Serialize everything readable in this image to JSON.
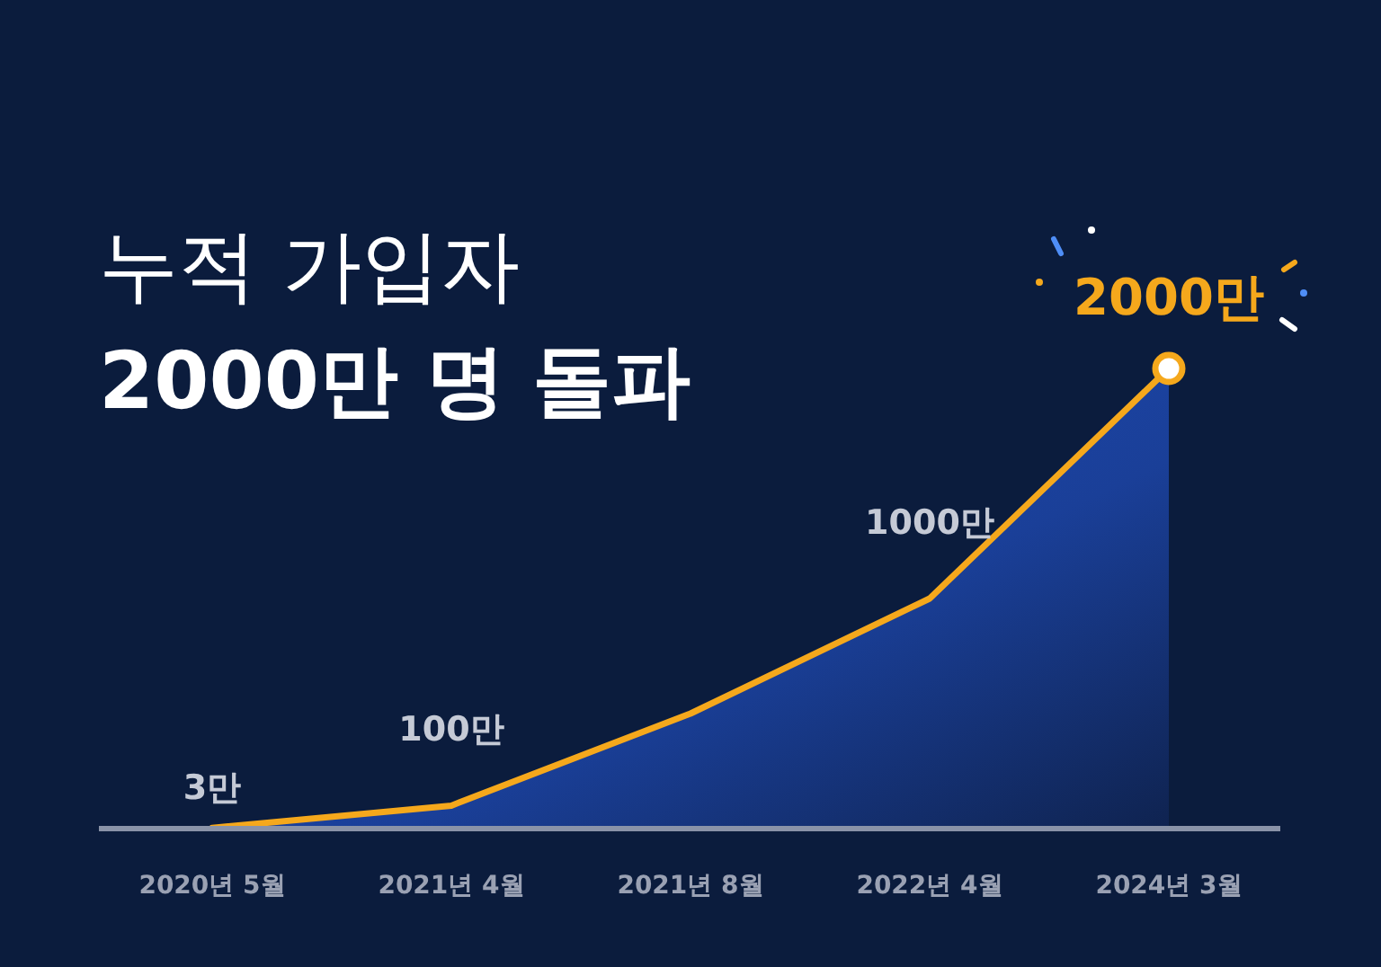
{
  "chart_data": {
    "type": "area",
    "title": "누적 가입자",
    "subtitle": "2000만 명 돌파",
    "categories": [
      "2020년 5월",
      "2021년 4월",
      "2021년 8월",
      "2022년 4월",
      "2024년 3월"
    ],
    "series": [
      {
        "color": "#f5a81c",
        "values": [
          3,
          100,
          500,
          1000,
          2000
        ],
        "value_labels": [
          "3만",
          "100만",
          null,
          "1000만",
          "2000만"
        ]
      }
    ],
    "marker": "none",
    "line_style": "solid"
  }
}
